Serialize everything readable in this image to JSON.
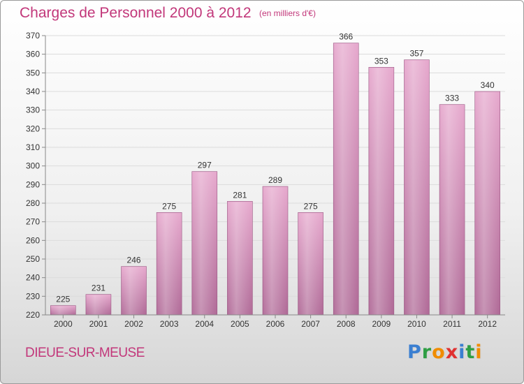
{
  "title": "Charges de Personnel 2000 à 2012",
  "unit_note": "(en milliers d'€)",
  "commune": "DIEUE-SUR-MEUSE",
  "logo": {
    "letters": [
      {
        "ch": "P",
        "color": "#3b7fd1"
      },
      {
        "ch": "r",
        "color": "#2f9e44"
      },
      {
        "ch": "o",
        "color": "#f08c00"
      },
      {
        "ch": "x",
        "color": "#e03131"
      },
      {
        "ch": "i",
        "color": "#3b7fd1"
      },
      {
        "ch": "t",
        "color": "#2f9e44"
      },
      {
        "ch": "i",
        "color": "#f08c00"
      }
    ]
  },
  "colors": {
    "bar": "#d98fbc",
    "bar_light": "#ebbad6",
    "bar_dark": "#b06a97",
    "accent": "#c2377a"
  },
  "chart_data": {
    "type": "bar",
    "title": "Charges de Personnel 2000 à 2012",
    "xlabel": "",
    "ylabel": "",
    "categories": [
      "2000",
      "2001",
      "2002",
      "2003",
      "2004",
      "2005",
      "2006",
      "2007",
      "2008",
      "2009",
      "2010",
      "2011",
      "2012"
    ],
    "values": [
      225,
      231,
      246,
      275,
      297,
      281,
      289,
      275,
      366,
      353,
      357,
      333,
      340
    ],
    "ylim": [
      220,
      370
    ],
    "yticks": [
      220,
      230,
      240,
      250,
      260,
      270,
      280,
      290,
      300,
      310,
      320,
      330,
      340,
      350,
      360,
      370
    ],
    "grid": true,
    "data_labels": true
  }
}
